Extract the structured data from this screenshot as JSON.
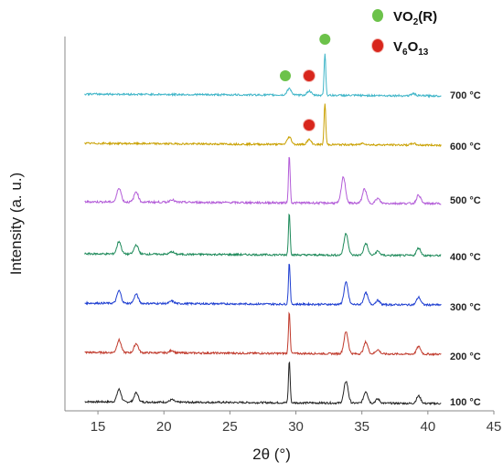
{
  "chart_data": {
    "type": "line",
    "xlabel": "2θ (°)",
    "ylabel": "Intensity (a. u.)",
    "xlim": [
      12.5,
      45
    ],
    "xticks": [
      15,
      20,
      25,
      30,
      35,
      40,
      45
    ],
    "data_x_range": [
      14,
      41
    ],
    "offset_stack": true,
    "series": [
      {
        "name": "100 °C",
        "color": "#222222",
        "peaks": [
          [
            16.6,
            0.3
          ],
          [
            17.9,
            0.22
          ],
          [
            20.6,
            0.06
          ],
          [
            29.5,
            1.0
          ],
          [
            33.8,
            0.52
          ],
          [
            35.3,
            0.28
          ],
          [
            36.2,
            0.1
          ],
          [
            39.3,
            0.18
          ]
        ]
      },
      {
        "name": "200 °C",
        "color": "#c0392b",
        "peaks": [
          [
            16.6,
            0.3
          ],
          [
            17.9,
            0.22
          ],
          [
            20.6,
            0.06
          ],
          [
            29.5,
            1.0
          ],
          [
            33.8,
            0.52
          ],
          [
            35.3,
            0.28
          ],
          [
            36.2,
            0.1
          ],
          [
            39.3,
            0.18
          ]
        ]
      },
      {
        "name": "300 °C",
        "color": "#1f3fd1",
        "peaks": [
          [
            16.6,
            0.3
          ],
          [
            17.9,
            0.22
          ],
          [
            20.6,
            0.06
          ],
          [
            29.5,
            1.0
          ],
          [
            33.8,
            0.52
          ],
          [
            35.3,
            0.28
          ],
          [
            36.2,
            0.1
          ],
          [
            39.3,
            0.18
          ]
        ]
      },
      {
        "name": "400 °C",
        "color": "#1e8a5a",
        "peaks": [
          [
            16.6,
            0.3
          ],
          [
            17.9,
            0.22
          ],
          [
            20.6,
            0.06
          ],
          [
            29.5,
            1.0
          ],
          [
            33.8,
            0.52
          ],
          [
            35.3,
            0.28
          ],
          [
            36.2,
            0.1
          ],
          [
            39.3,
            0.18
          ]
        ]
      },
      {
        "name": "500 °C",
        "color": "#b35cd8",
        "peaks": [
          [
            16.6,
            0.3
          ],
          [
            17.9,
            0.22
          ],
          [
            20.6,
            0.06
          ],
          [
            29.5,
            1.0
          ],
          [
            33.6,
            0.55
          ],
          [
            35.2,
            0.3
          ],
          [
            36.2,
            0.1
          ],
          [
            39.3,
            0.18
          ]
        ]
      },
      {
        "name": "600 °C",
        "color": "#c9a000",
        "peaks": [
          [
            29.5,
            0.18
          ],
          [
            31.0,
            0.12
          ],
          [
            32.2,
            1.0
          ],
          [
            35.1,
            0.04
          ],
          [
            38.9,
            0.04
          ]
        ]
      },
      {
        "name": "700 °C",
        "color": "#3fb5c8",
        "peaks": [
          [
            29.5,
            0.16
          ],
          [
            31.0,
            0.1
          ],
          [
            32.2,
            1.0
          ],
          [
            38.9,
            0.05
          ]
        ]
      }
    ],
    "legend": [
      {
        "label_main": "VO",
        "label_sub": "2",
        "label_tail": "(R)",
        "marker_color": "#6cc24a"
      },
      {
        "label_main": "V",
        "label_sub": "6",
        "label_mid": "O",
        "label_sub2": "13",
        "marker_color": "#d8261c"
      }
    ],
    "phase_markers": [
      {
        "series": "700 °C",
        "x": 29.2,
        "phase": "VO2(R)"
      },
      {
        "series": "700 °C",
        "x": 31.0,
        "phase": "V6O13"
      },
      {
        "series": "700 °C",
        "x": 32.2,
        "phase": "VO2(R)"
      },
      {
        "series": "600 °C",
        "x": 31.0,
        "phase": "V6O13"
      }
    ]
  }
}
